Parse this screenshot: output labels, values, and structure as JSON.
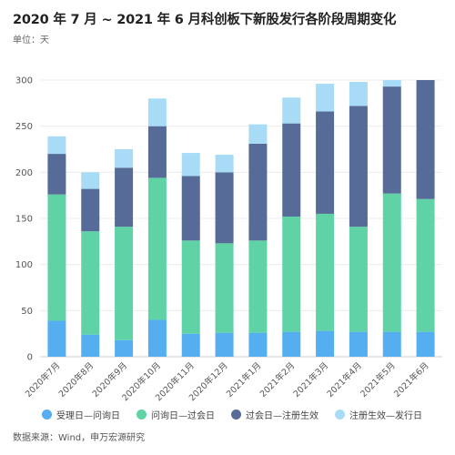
{
  "header": {
    "title": "2020 年 7 月 ~ 2021 年 6 月科创板下新股发行各阶段周期变化",
    "unit": "单位：天"
  },
  "footer": {
    "source": "数据来源：Wind，申万宏源研究"
  },
  "colors": {
    "s1": "#55aef0",
    "s2": "#5fd3a6",
    "s3": "#566b98",
    "s4": "#a8dcf6"
  },
  "chart_data": {
    "type": "bar",
    "stacked": true,
    "categories": [
      "2020年7月",
      "2020年8月",
      "2020年9月",
      "2020年10月",
      "2020年11月",
      "2020年12月",
      "2021年1月",
      "2021年2月",
      "2021年3月",
      "2021年4月",
      "2021年5月",
      "2021年6月"
    ],
    "series": [
      {
        "name": "受理日—问询日",
        "values": [
          39,
          24,
          18,
          40,
          25,
          26,
          26,
          27,
          28,
          27,
          27,
          27
        ]
      },
      {
        "name": "问询日—过会日",
        "values": [
          137,
          112,
          123,
          154,
          101,
          97,
          100,
          125,
          127,
          114,
          150,
          144
        ]
      },
      {
        "name": "过会日—注册生效",
        "values": [
          44,
          46,
          64,
          56,
          70,
          77,
          105,
          101,
          111,
          131,
          116,
          129
        ]
      },
      {
        "name": "注册生效—发行日",
        "values": [
          19,
          18,
          20,
          30,
          25,
          19,
          21,
          28,
          30,
          26,
          8,
          0
        ]
      }
    ],
    "ylim": [
      0,
      300
    ],
    "yticks": [
      0,
      50,
      100,
      150,
      200,
      250,
      300
    ],
    "grid": true,
    "legend": "bottom"
  }
}
